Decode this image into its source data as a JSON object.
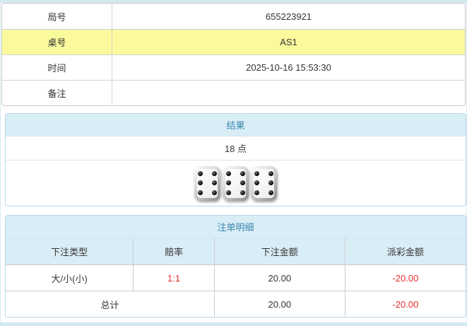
{
  "colors": {
    "page_background": "#d3e9f2",
    "panel_header_bg": "#d9edf7",
    "panel_header_text": "#3a87ad",
    "highlight_row_bg": "#fafa9d",
    "negative_text": "#e62e2e"
  },
  "info_table": {
    "rows": [
      {
        "label": "局号",
        "value": "655223921",
        "highlight": false
      },
      {
        "label": "桌号",
        "value": "AS1",
        "highlight": true
      },
      {
        "label": "时间",
        "value": "2025-10-16 15:53:30",
        "highlight": false
      },
      {
        "label": "备注",
        "value": "",
        "highlight": false
      }
    ]
  },
  "result_panel": {
    "title": "结果",
    "points": "18 点",
    "dice": [
      6,
      6,
      6
    ]
  },
  "bet_panel": {
    "title": "注单明细",
    "columns": [
      "下注类型",
      "赔率",
      "下注金额",
      "派彩金额"
    ],
    "rows": [
      {
        "bet_type": "大/小(小)",
        "odds": "1:1",
        "bet_amount": "20.00",
        "payout": "-20.00"
      }
    ],
    "total_row": {
      "label": "总计",
      "bet_amount": "20.00",
      "payout": "-20.00"
    }
  }
}
